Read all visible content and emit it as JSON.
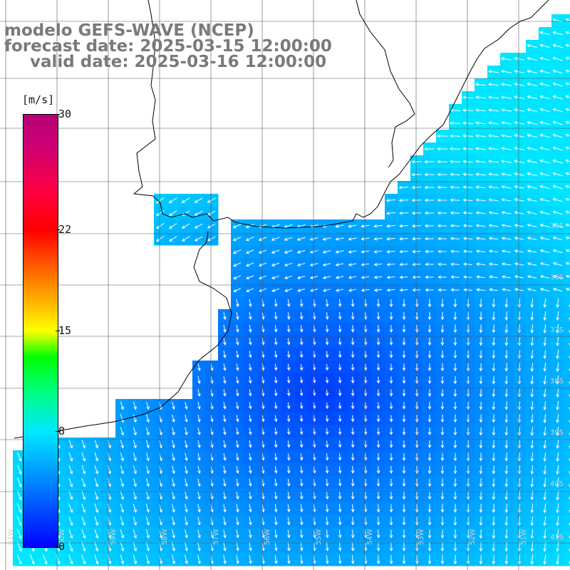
{
  "title": {
    "line1": "modelo GEFS-WAVE (NCEP)",
    "line2": "forecast date: 2025-03-15 12:00:00",
    "line3": "valid date: 2025-03-16 12:00:00"
  },
  "colorbar": {
    "units": "[m/s]",
    "ticks": [
      "30",
      "22",
      "15",
      "8",
      "0"
    ],
    "tick_values": [
      30,
      22,
      15,
      8,
      0
    ],
    "vmin": 0,
    "vmax": 30,
    "colors": [
      "#0000ff",
      "#00a0ff",
      "#00e8ff",
      "#00ff80",
      "#00ff00",
      "#ffff00",
      "#ffb000",
      "#ff5000",
      "#ff0000",
      "#d00070",
      "#b8007a"
    ]
  },
  "map": {
    "land_color": "#ffffff",
    "coastline_color": "#000000",
    "grid_color": "#000000",
    "lat_labels": [
      "35S",
      "36S",
      "37S",
      "38S",
      "39S",
      "40S",
      "41S"
    ],
    "lon_labels": [
      "61W",
      "60W",
      "59W",
      "58W",
      "57W",
      "56W",
      "55W",
      "54W",
      "53W",
      "52W",
      "51W"
    ]
  }
}
